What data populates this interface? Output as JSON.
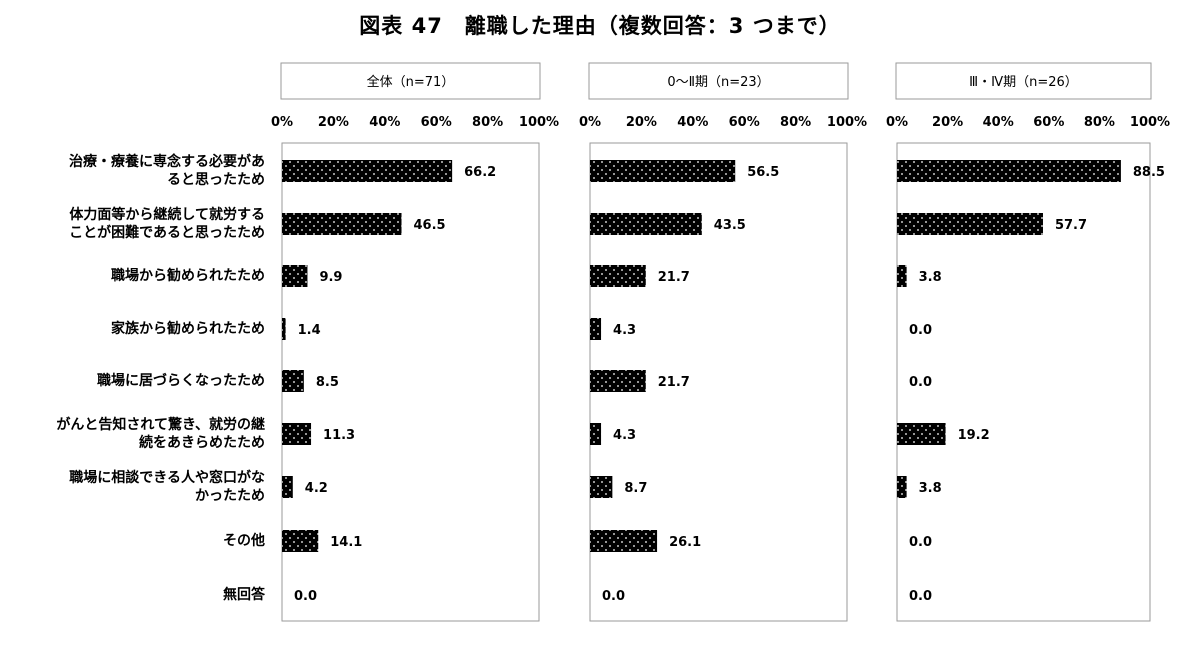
{
  "title": "図表 47　離職した理由（複数回答：3 つまで）",
  "categories": [
    [
      "治療・療養に専念する必要があ",
      "ると思ったため"
    ],
    [
      "体力面等から継続して就労する",
      "ことが困難であると思ったため"
    ],
    [
      "職場から勧められたため"
    ],
    [
      "家族から勧められたため"
    ],
    [
      "職場に居づらくなったため"
    ],
    [
      "がんと告知されて驚き、就労の継",
      "続をあきらめたため"
    ],
    [
      "職場に相談できる人や窓口がな",
      "かったため"
    ],
    [
      "その他"
    ],
    [
      "無回答"
    ]
  ],
  "chart_data": [
    {
      "type": "bar",
      "title": "全体（n=71）",
      "categories": [
        "治療・療養に専念する必要があると思ったため",
        "体力面等から継続して就労することが困難であると思ったため",
        "職場から勧められたため",
        "家族から勧められたため",
        "職場に居づらくなったため",
        "がんと告知されて驚き、就労の継続をあきらめたため",
        "職場に相談できる人や窓口がなかったため",
        "その他",
        "無回答"
      ],
      "values": [
        66.2,
        46.5,
        9.9,
        1.4,
        8.5,
        11.3,
        4.2,
        14.1,
        0.0
      ],
      "value_labels": [
        "66.2",
        "46.5",
        "9.9",
        "1.4",
        "8.5",
        "11.3",
        "4.2",
        "14.1",
        "0.0"
      ],
      "xlim": [
        0,
        100
      ],
      "ticks": [
        "0%",
        "20%",
        "40%",
        "60%",
        "80%",
        "100%"
      ]
    },
    {
      "type": "bar",
      "title": "0〜Ⅱ期（n=23）",
      "categories": [
        "治療・療養に専念する必要があると思ったため",
        "体力面等から継続して就労することが困難であると思ったため",
        "職場から勧められたため",
        "家族から勧められたため",
        "職場に居づらくなったため",
        "がんと告知されて驚き、就労の継続をあきらめたため",
        "職場に相談できる人や窓口がなかったため",
        "その他",
        "無回答"
      ],
      "values": [
        56.5,
        43.5,
        21.7,
        4.3,
        21.7,
        4.3,
        8.7,
        26.1,
        0.0
      ],
      "value_labels": [
        "56.5",
        "43.5",
        "21.7",
        "4.3",
        "21.7",
        "4.3",
        "8.7",
        "26.1",
        "0.0"
      ],
      "xlim": [
        0,
        100
      ],
      "ticks": [
        "0%",
        "20%",
        "40%",
        "60%",
        "80%",
        "100%"
      ]
    },
    {
      "type": "bar",
      "title": "Ⅲ・Ⅳ期（n=26）",
      "categories": [
        "治療・療養に専念する必要があると思ったため",
        "体力面等から継続して就労することが困難であると思ったため",
        "職場から勧められたため",
        "家族から勧められたため",
        "職場に居づらくなったため",
        "がんと告知されて驚き、就労の継続をあきらめたため",
        "職場に相談できる人や窓口がなかったため",
        "その他",
        "無回答"
      ],
      "values": [
        88.5,
        57.7,
        3.8,
        0.0,
        0.0,
        19.2,
        3.8,
        0.0,
        0.0
      ],
      "value_labels": [
        "88.5",
        "57.7",
        "3.8",
        "0.0",
        "0.0",
        "19.2",
        "3.8",
        "0.0",
        "0.0"
      ],
      "xlim": [
        0,
        100
      ],
      "ticks": [
        "0%",
        "20%",
        "40%",
        "60%",
        "80%",
        "100%"
      ]
    }
  ],
  "colors": {
    "bar_fill": "#000000",
    "bar_dots": "#ffffff",
    "frame": "#9a9a9a"
  }
}
